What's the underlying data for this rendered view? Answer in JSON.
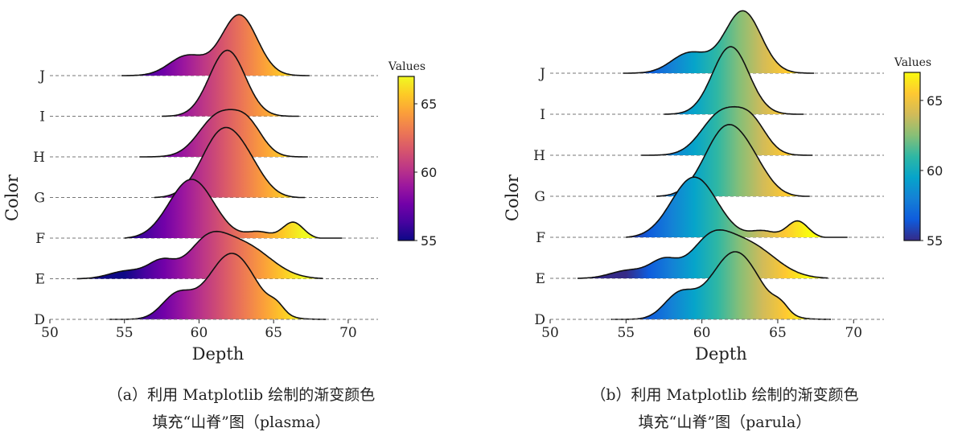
{
  "chart_data": [
    {
      "type": "ridgeline",
      "colormap": "plasma",
      "xlabel": "Depth",
      "ylabel": "Color",
      "xlim": [
        50,
        72
      ],
      "xticks": [
        50,
        55,
        60,
        65,
        70
      ],
      "categories": [
        "D",
        "E",
        "F",
        "G",
        "H",
        "I",
        "J"
      ],
      "colorbar": {
        "label": "Values",
        "range": [
          55,
          67
        ],
        "ticks": [
          55,
          60,
          65
        ]
      },
      "series": [
        {
          "name": "D",
          "peaks": [
            [
              58.5,
              1.0,
              0.35
            ],
            [
              62.2,
              1.6,
              1.0
            ],
            [
              65.2,
              0.5,
              0.12
            ]
          ],
          "range": [
            54.0,
            68.5
          ]
        },
        {
          "name": "E",
          "peaks": [
            [
              55.2,
              1.2,
              0.12
            ],
            [
              57.5,
              0.9,
              0.25
            ],
            [
              60.5,
              1.3,
              0.48
            ],
            [
              63.0,
              1.8,
              0.5
            ]
          ],
          "range": [
            51.8,
            68.3
          ]
        },
        {
          "name": "F",
          "peaks": [
            [
              59.5,
              1.5,
              0.9
            ],
            [
              64.0,
              0.8,
              0.1
            ],
            [
              66.3,
              0.7,
              0.25
            ]
          ],
          "range": [
            55.0,
            69.6
          ]
        },
        {
          "name": "G",
          "peaks": [
            [
              61.6,
              1.4,
              1.0
            ],
            [
              63.5,
              1.1,
              0.25
            ]
          ],
          "range": [
            57.0,
            67.1
          ]
        },
        {
          "name": "H",
          "peaks": [
            [
              61.3,
              1.3,
              0.62
            ],
            [
              63.3,
              1.0,
              0.42
            ]
          ],
          "range": [
            56.0,
            67.3
          ]
        },
        {
          "name": "I",
          "peaks": [
            [
              61.9,
              1.2,
              1.0
            ]
          ],
          "range": [
            57.5,
            66.7
          ]
        },
        {
          "name": "J",
          "peaks": [
            [
              59.2,
              1.2,
              0.3
            ],
            [
              62.7,
              1.2,
              0.92
            ]
          ],
          "range": [
            54.8,
            67.4
          ]
        }
      ]
    },
    {
      "type": "ridgeline",
      "colormap": "parula",
      "xlabel": "Depth",
      "ylabel": "Color",
      "xlim": [
        50,
        72
      ],
      "xticks": [
        50,
        55,
        60,
        65,
        70
      ],
      "categories": [
        "D",
        "E",
        "F",
        "G",
        "H",
        "I",
        "J"
      ],
      "colorbar": {
        "label": "Values",
        "range": [
          55,
          67
        ],
        "ticks": [
          55,
          60,
          65
        ]
      },
      "series": [
        {
          "name": "D",
          "peaks": [
            [
              58.5,
              1.0,
              0.35
            ],
            [
              62.2,
              1.6,
              1.0
            ],
            [
              65.2,
              0.5,
              0.12
            ]
          ],
          "range": [
            54.0,
            68.5
          ]
        },
        {
          "name": "E",
          "peaks": [
            [
              55.2,
              1.2,
              0.12
            ],
            [
              57.5,
              0.9,
              0.25
            ],
            [
              60.5,
              1.3,
              0.48
            ],
            [
              63.0,
              1.8,
              0.5
            ]
          ],
          "range": [
            51.8,
            68.3
          ]
        },
        {
          "name": "F",
          "peaks": [
            [
              59.5,
              1.5,
              0.9
            ],
            [
              64.0,
              0.8,
              0.1
            ],
            [
              66.3,
              0.7,
              0.25
            ]
          ],
          "range": [
            55.0,
            69.6
          ]
        },
        {
          "name": "G",
          "peaks": [
            [
              61.6,
              1.4,
              1.0
            ],
            [
              63.5,
              1.1,
              0.25
            ]
          ],
          "range": [
            57.0,
            67.1
          ]
        },
        {
          "name": "H",
          "peaks": [
            [
              61.3,
              1.3,
              0.62
            ],
            [
              63.3,
              1.0,
              0.42
            ]
          ],
          "range": [
            56.0,
            67.3
          ]
        },
        {
          "name": "I",
          "peaks": [
            [
              61.9,
              1.2,
              1.0
            ]
          ],
          "range": [
            57.5,
            66.7
          ]
        },
        {
          "name": "J",
          "peaks": [
            [
              59.2,
              1.2,
              0.3
            ],
            [
              62.7,
              1.2,
              0.92
            ]
          ],
          "range": [
            54.8,
            67.4
          ]
        }
      ]
    }
  ],
  "captions": {
    "a": {
      "line1": "（a）利用 Matplotlib 绘制的渐变颜色",
      "line2": "填充“山脊”图（plasma）"
    },
    "b": {
      "line1": "（b）利用 Matplotlib 绘制的渐变颜色",
      "line2": "填充“山脊”图（parula）"
    }
  }
}
